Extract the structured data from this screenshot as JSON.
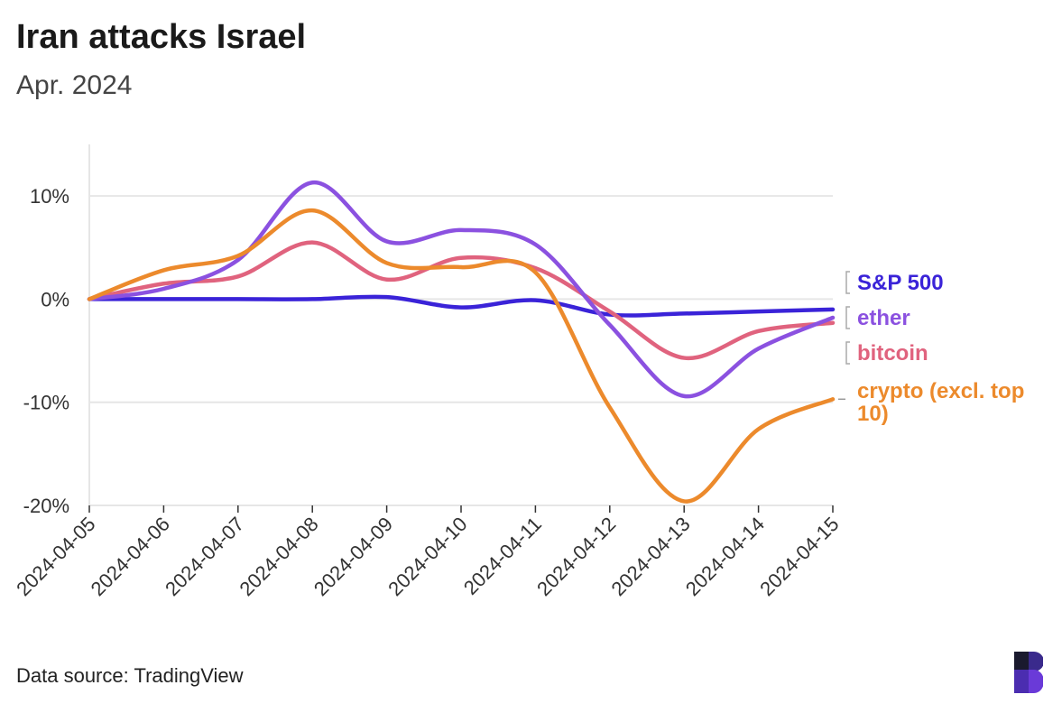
{
  "header": {
    "title": "Iran attacks Israel",
    "subtitle": "Apr. 2024"
  },
  "footer": {
    "source": "Data source: TradingView"
  },
  "logo": {
    "icon": "b-logo-icon",
    "colors": [
      "#1a1a2e",
      "#3a2a8c",
      "#6a3ad8"
    ]
  },
  "chart_data": {
    "type": "line",
    "x": [
      "2024-04-05",
      "2024-04-06",
      "2024-04-07",
      "2024-04-08",
      "2024-04-09",
      "2024-04-10",
      "2024-04-11",
      "2024-04-12",
      "2024-04-13",
      "2024-04-14",
      "2024-04-15"
    ],
    "ylim": [
      -20,
      15
    ],
    "yticks": [
      10,
      0,
      -10,
      -20
    ],
    "ytick_labels": [
      "10%",
      "0%",
      "-10%",
      "-20%"
    ],
    "grid": true,
    "legend": "right, direct labels at line ends",
    "series": [
      {
        "name": "S&P 500",
        "color": "#3a23d8",
        "values": [
          0,
          0,
          0,
          0,
          0.2,
          -0.8,
          -0.1,
          -1.5,
          -1.4,
          -1.2,
          -1.0
        ]
      },
      {
        "name": "ether",
        "color": "#8b51e0",
        "values": [
          0,
          1.0,
          3.8,
          11.3,
          5.6,
          6.7,
          5.3,
          -2.5,
          -9.4,
          -4.8,
          -1.8
        ]
      },
      {
        "name": "bitcoin",
        "color": "#e0637e",
        "values": [
          0,
          1.5,
          2.2,
          5.5,
          1.9,
          4.0,
          3.0,
          -1.2,
          -5.7,
          -3.1,
          -2.3
        ]
      },
      {
        "name": "crypto (excl. top 10)",
        "color": "#ec8a2c",
        "values": [
          0,
          2.8,
          4.2,
          8.6,
          3.5,
          3.1,
          2.6,
          -10.5,
          -19.6,
          -12.6,
          -9.7
        ]
      }
    ]
  }
}
